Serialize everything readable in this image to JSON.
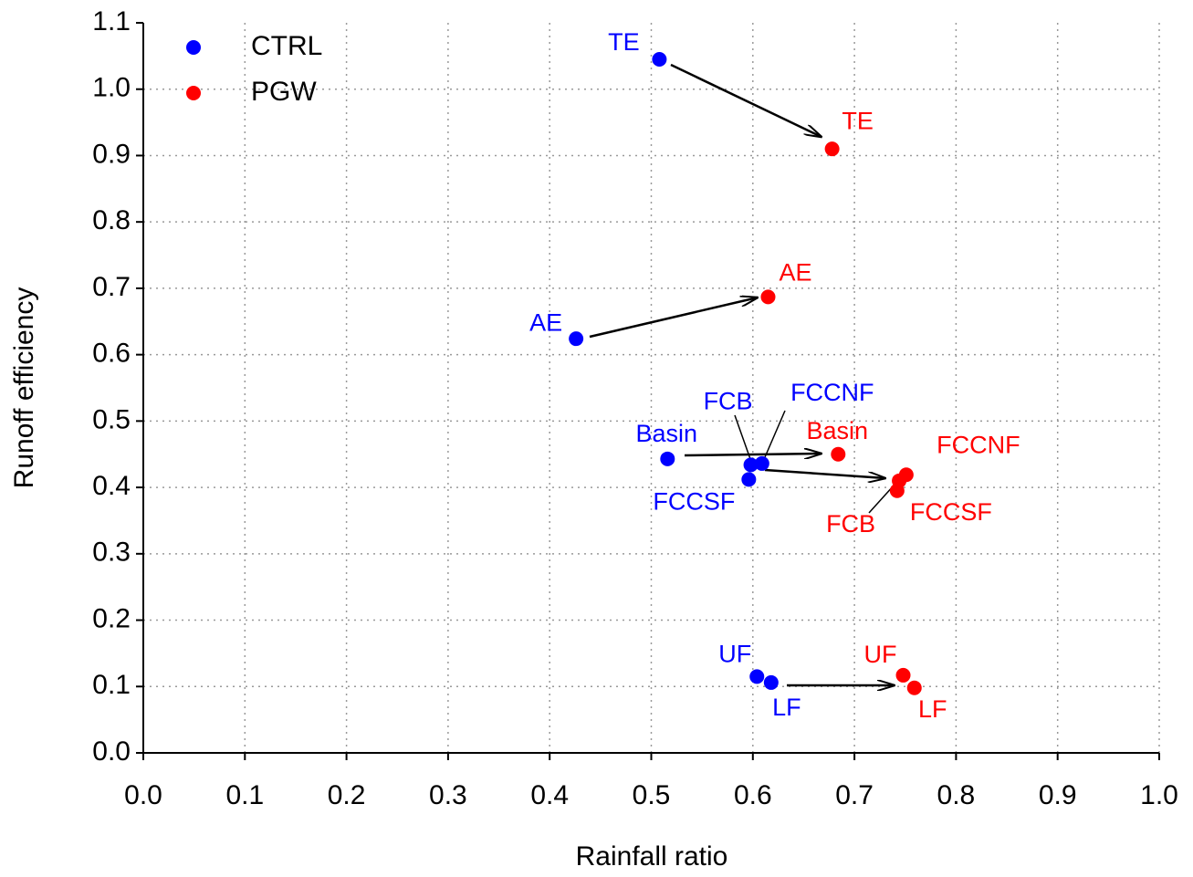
{
  "chart_data": {
    "type": "scatter",
    "x_label": "Rainfall ratio",
    "y_label": "Runoff efficiency",
    "xlim": [
      0,
      1
    ],
    "ylim": [
      0,
      1.1
    ],
    "xticks": [
      {
        "value": 0,
        "label": "0.0"
      },
      0.1,
      0.2,
      0.3,
      0.4,
      0.5,
      0.6,
      0.7,
      0.8,
      0.9,
      {
        "value": 1,
        "label": "1.0"
      }
    ],
    "yticks": [
      {
        "value": 0,
        "label": "0.0"
      },
      0.1,
      0.2,
      0.3,
      0.4,
      0.5,
      0.6,
      0.7,
      0.8,
      0.9,
      {
        "value": 1,
        "label": "1.0"
      },
      1.1
    ],
    "grid": true,
    "legend": "upper left",
    "series": [
      {
        "name": "CTRL",
        "color": "#0000ff",
        "labels": [
          "TE",
          "AE",
          "Basin",
          "FCB",
          "FCCNF",
          "FCCSF",
          "UF",
          "LF"
        ],
        "x": [
          0.508,
          0.426,
          0.516,
          0.598,
          0.609,
          0.596,
          0.604,
          0.618
        ],
        "values": [
          1.045,
          0.624,
          0.443,
          0.434,
          0.436,
          0.412,
          0.115,
          0.106
        ]
      },
      {
        "name": "PGW",
        "color": "#ff0000",
        "labels": [
          "TE",
          "AE",
          "Basin",
          "FCB",
          "FCCNF",
          "FCCSF",
          "UF",
          "LF"
        ],
        "x": [
          0.678,
          0.615,
          0.684,
          0.744,
          0.751,
          0.742,
          0.748,
          0.759
        ],
        "values": [
          0.91,
          0.687,
          0.45,
          0.41,
          0.419,
          0.395,
          0.117,
          0.098
        ]
      }
    ]
  }
}
